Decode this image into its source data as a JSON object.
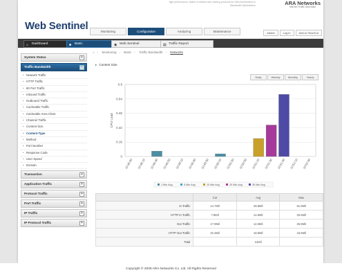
{
  "app": {
    "logo": "Web Sentinel",
    "tagline": "high performance, stable & reliable web caching products for Web Acceleration & Bandwidth Optimization",
    "brand": "ARA Networks",
    "brand_sub": "Internet Traffic Specialist"
  },
  "top_nav": [
    "Monitoring",
    "Configuration",
    "Analyzing",
    "Maintenance"
  ],
  "top_nav_active": 1,
  "utility_links": [
    "Addes",
    "Log in",
    "Add to ShortCut"
  ],
  "sub_tabs": [
    {
      "label": "Dashboard",
      "icon": "home-icon"
    },
    {
      "label": "Basic",
      "icon": "basic-icon"
    },
    {
      "label": "Web Sentinel",
      "icon": "globe-icon"
    },
    {
      "label": "Traffic Report",
      "icon": "report-icon"
    }
  ],
  "sidebar": {
    "system_status": "System Status",
    "traffic_bandwidth": "Traffic Bandwidth",
    "items": [
      "Network Traffic",
      "HTTP Traffic",
      "80 Port Traffic",
      "Inbound Traffic",
      "Outbound Traffic",
      "Cacheable Traffic",
      "Cacheable Area Chart",
      "Channel Traffic",
      "Content Size",
      "Content-Type",
      "Method",
      "Port Number",
      "Response Code",
      "User Speed",
      "Domain"
    ],
    "active_item": "Content-Type",
    "lower_sections": [
      "Transaction",
      "Application Traffic",
      "Protocol Traffic",
      "Port Traffic",
      "IP Traffic",
      "IP Protocol Traffic"
    ]
  },
  "breadcrumb": [
    "Monitoring",
    "Basic",
    "Traffic Bandwidth",
    "Networks"
  ],
  "panel_title": "Content Size",
  "range_tabs": [
    "Daily",
    "Weekly",
    "Monthly",
    "Yearly"
  ],
  "chart_data": {
    "type": "bar",
    "ylabel": "CPU Load",
    "ylim": [
      0,
      0.8
    ],
    "yticks": [
      "0.8",
      "0.64",
      "0.48",
      "0.32",
      "0.16",
      "0"
    ],
    "categories": [
      "10:45:50",
      "10:46:10",
      "10:46:30",
      "10:46:50",
      "10:49:10",
      "10:49:30",
      "10:49:50",
      "10:50:10",
      "10:50:30",
      "10:50:50",
      "10:51:10",
      "10:51:30",
      "10:51:50",
      "10:52:10",
      "10:52:30"
    ],
    "series": [
      {
        "name": "1 Min Avg",
        "color": "#4b8fa3",
        "values": [
          0,
          0,
          0.06,
          0,
          0,
          0,
          0,
          0.03,
          0,
          0,
          0,
          0,
          0,
          0,
          0
        ]
      },
      {
        "name": "5 Min Avg",
        "color": "#3aa9d6",
        "values": [
          0,
          0,
          0,
          0,
          0,
          0,
          0,
          0,
          0,
          0,
          0,
          0,
          0,
          0,
          0
        ]
      },
      {
        "name": "10 Min Avg",
        "color": "#c9a02a",
        "values": [
          0,
          0,
          0,
          0,
          0,
          0,
          0,
          0,
          0,
          0,
          0.2,
          0,
          0,
          0,
          0
        ]
      },
      {
        "name": "20 Min Avg",
        "color": "#a63a9a",
        "values": [
          0,
          0,
          0,
          0,
          0,
          0,
          0,
          0,
          0,
          0,
          0,
          0.35,
          0,
          0,
          0
        ]
      },
      {
        "name": "30 Min Avg",
        "color": "#4e4aa6",
        "values": [
          0,
          0,
          0,
          0,
          0,
          0,
          0,
          0,
          0,
          0,
          0,
          0,
          0.69,
          0,
          0
        ]
      }
    ],
    "legend_position": "bottom",
    "grid": true
  },
  "table": {
    "headers": [
      "",
      "Cur",
      "Avg",
      "Max"
    ],
    "rows": [
      {
        "label": "In Traffic",
        "cur": "14.7Mil",
        "avg": "28.8Mil",
        "max": "61.8Mil"
      },
      {
        "label": "HTTP In Traffic",
        "cur": "7.8Mil",
        "avg": "14.6Mil",
        "max": "25.6Mil"
      },
      {
        "label": "Out Traffic",
        "cur": "17.9Mil",
        "avg": "14.6Mil",
        "max": "26.8Mil"
      },
      {
        "label": "HTTP Out Traffic",
        "cur": "22.3Mil",
        "avg": "18.6Mil",
        "max": "18.6Mil"
      },
      {
        "label": "Total",
        "cur": "",
        "avg": "12Mil",
        "max": ""
      }
    ]
  },
  "footer": "Copyright © 2009 ARA Networks Co. Ltd. All Rights Reserved"
}
